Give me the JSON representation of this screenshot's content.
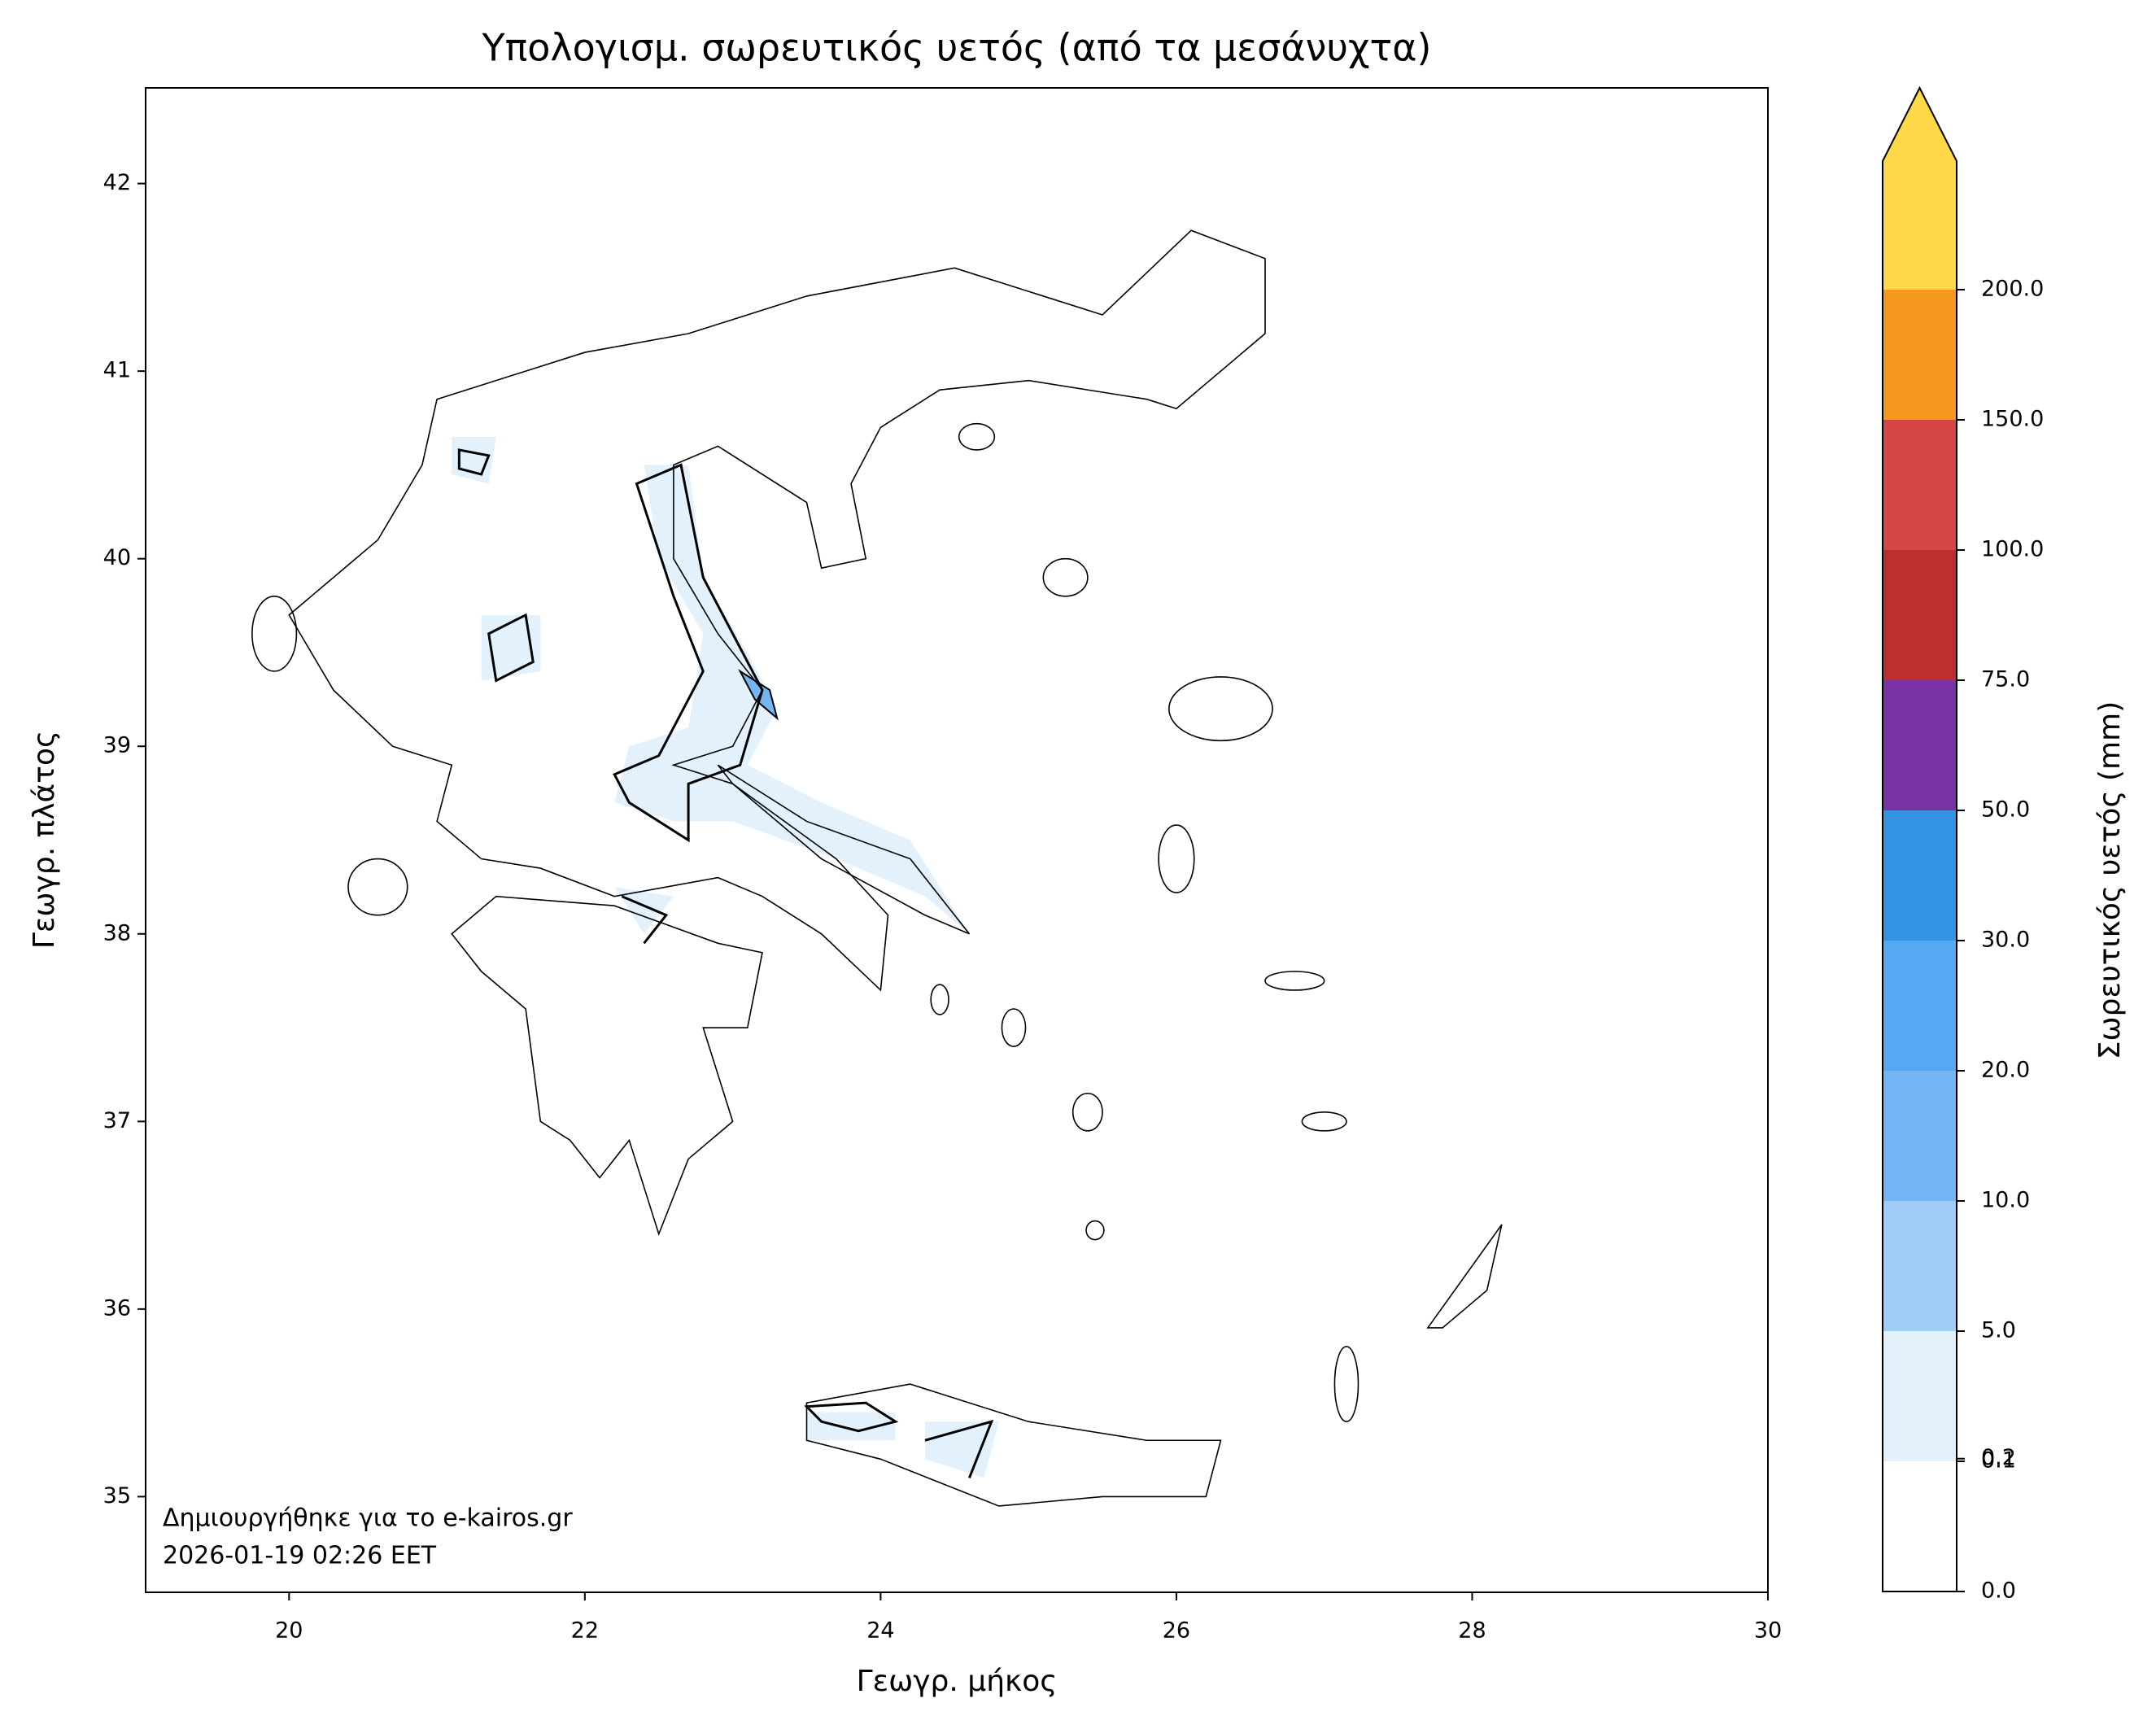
{
  "chart_data": {
    "type": "map",
    "title": "Υπολογισμ. σωρευτικός υετός (από τα μεσάνυχτα)",
    "xlabel": "Γεωγρ. μήκος",
    "ylabel": "Γεωγρ. πλάτος",
    "xlim": [
      19.03,
      30
    ],
    "ylim": [
      34.49,
      42.51
    ],
    "xticks": [
      20,
      22,
      24,
      26,
      28,
      30
    ],
    "yticks": [
      35,
      36,
      37,
      38,
      39,
      40,
      41,
      42
    ],
    "colorbar": {
      "label": "Σωρευτικός υετός (mm)",
      "levels": [
        0,
        0.1,
        5,
        10,
        20,
        30,
        50,
        75,
        100,
        150,
        200
      ],
      "colors": [
        "#ffffff",
        "#e3f1fc",
        "#9fcdf7",
        "#74b6f3",
        "#55a9f3",
        "#3593e4",
        "#7a33a5",
        "#bb2f2f",
        "#d64545",
        "#f7981e"
      ],
      "extend_color": "#fed846",
      "ticks": [
        {
          "value": 0,
          "label": "0.0"
        },
        {
          "value": 0.1,
          "label": "0.1"
        },
        {
          "value": 0.2,
          "label": "0.2"
        },
        {
          "value": 5,
          "label": "5.0"
        },
        {
          "value": 10,
          "label": "10.0"
        },
        {
          "value": 20,
          "label": "20.0"
        },
        {
          "value": 30,
          "label": "30.0"
        },
        {
          "value": 50,
          "label": "50.0"
        },
        {
          "value": 75,
          "label": "75.0"
        },
        {
          "value": 100,
          "label": "100.0"
        },
        {
          "value": 150,
          "label": "150.0"
        },
        {
          "value": 200,
          "label": "200.0"
        }
      ]
    },
    "annotation": [
      "Δημιουργήθηκε για το e-kairos.gr",
      "2026-01-19 02:26 EET"
    ]
  }
}
